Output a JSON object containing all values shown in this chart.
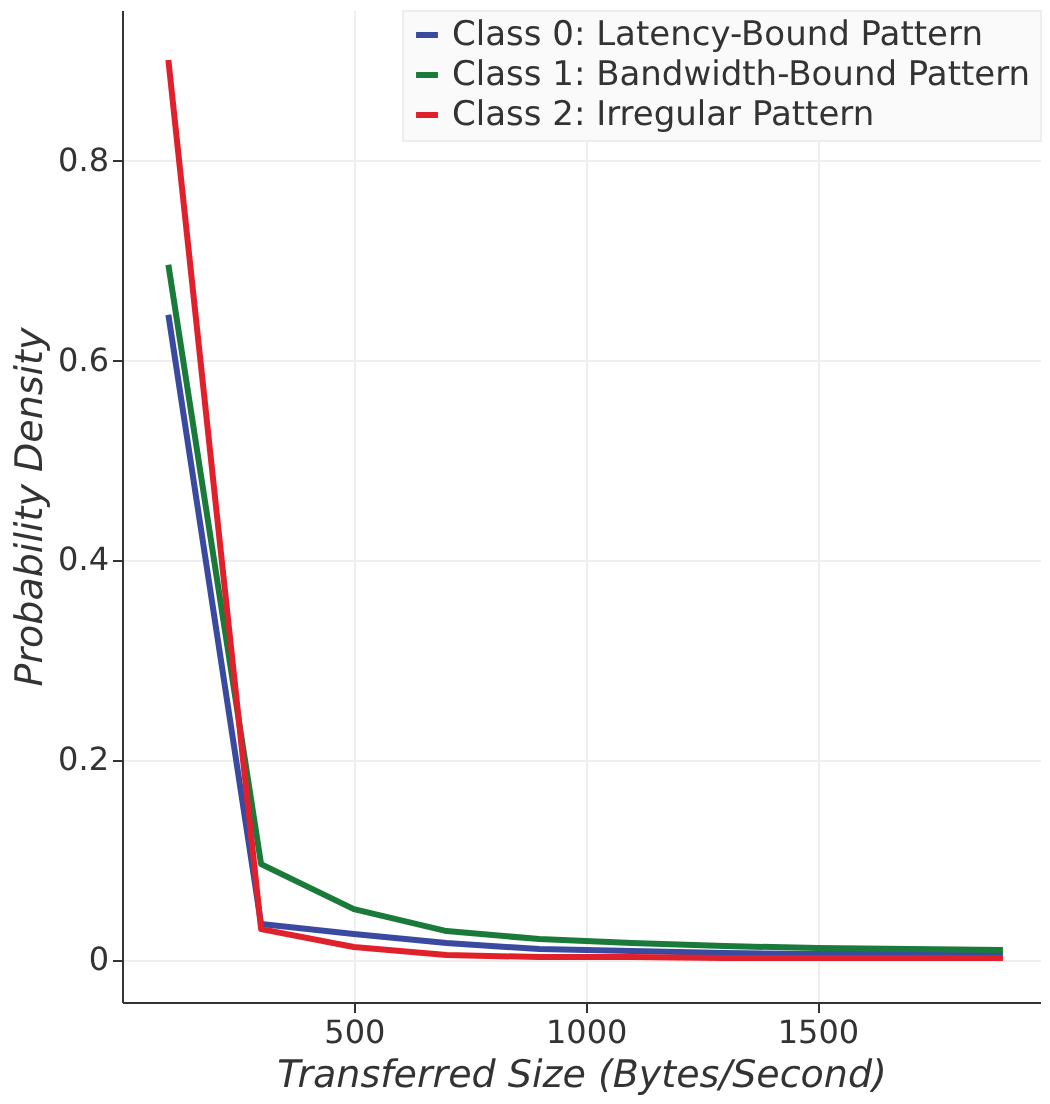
{
  "chart_data": {
    "type": "line",
    "xlabel": "Transferred Size (Bytes/Second)",
    "ylabel": "Probability Density",
    "x": [
      100,
      300,
      500,
      700,
      900,
      1100,
      1300,
      1500,
      1700,
      1900
    ],
    "series": [
      {
        "name": "Class 0: Latency-Bound Pattern",
        "color": "#3a4aa0",
        "values": [
          0.645,
          0.035,
          0.025,
          0.016,
          0.01,
          0.008,
          0.006,
          0.005,
          0.005,
          0.004
        ]
      },
      {
        "name": "Class 1: Bandwidth-Bound Pattern",
        "color": "#1a7a3a",
        "values": [
          0.695,
          0.095,
          0.05,
          0.028,
          0.02,
          0.016,
          0.013,
          0.011,
          0.01,
          0.009
        ]
      },
      {
        "name": "Class 2: Irregular Pattern",
        "color": "#e0202a",
        "values": [
          0.9,
          0.03,
          0.012,
          0.004,
          0.002,
          0.002,
          0.001,
          0.001,
          0.001,
          0.001
        ]
      }
    ],
    "xlim": [
      0,
      1980
    ],
    "xticks": [
      500,
      1000,
      1500
    ],
    "ylim": [
      -0.043,
      0.95
    ],
    "yticks": [
      0,
      0.2,
      0.4,
      0.6,
      0.8
    ],
    "grid": true,
    "legend": "top right",
    "marker": "none",
    "line_style": "solid"
  }
}
